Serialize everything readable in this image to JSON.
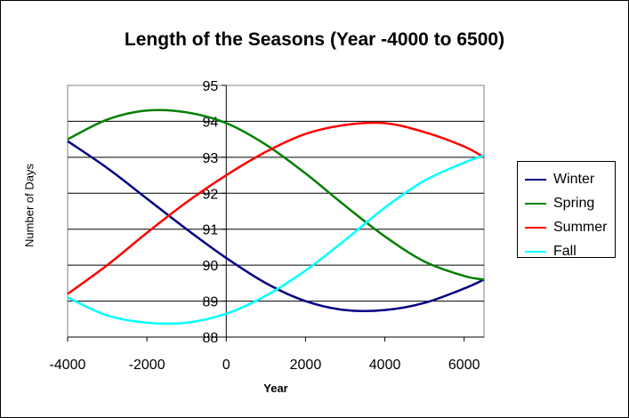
{
  "chart_data": {
    "type": "line",
    "title": "Length of the Seasons (Year -4000 to 6500)",
    "xlabel": "Year",
    "ylabel": "Number of Days",
    "xlim": [
      -4000,
      6500
    ],
    "ylim": [
      88,
      95
    ],
    "x_ticks": [
      -4000,
      -2000,
      0,
      2000,
      4000,
      6000
    ],
    "y_ticks": [
      88,
      89,
      90,
      91,
      92,
      93,
      94,
      95
    ],
    "grid": "horizontal",
    "legend_position": "right",
    "x": [
      -4000,
      -3000,
      -2000,
      -1000,
      0,
      1000,
      2000,
      3000,
      4000,
      5000,
      6000,
      6500
    ],
    "series": [
      {
        "name": "Winter",
        "color": "#000080",
        "values": [
          93.45,
          92.7,
          91.85,
          91.0,
          90.2,
          89.5,
          89.0,
          88.75,
          88.75,
          88.95,
          89.35,
          89.6
        ]
      },
      {
        "name": "Spring",
        "color": "#008000",
        "values": [
          93.5,
          94.05,
          94.3,
          94.25,
          93.95,
          93.35,
          92.55,
          91.65,
          90.8,
          90.1,
          89.7,
          89.6
        ]
      },
      {
        "name": "Summer",
        "color": "#ff0000",
        "values": [
          89.2,
          90.0,
          90.9,
          91.75,
          92.5,
          93.15,
          93.65,
          93.9,
          93.95,
          93.7,
          93.3,
          93.0
        ]
      },
      {
        "name": "Fall",
        "color": "#00ffff",
        "values": [
          89.1,
          88.6,
          88.4,
          88.4,
          88.65,
          89.15,
          89.85,
          90.7,
          91.6,
          92.35,
          92.85,
          93.05
        ]
      }
    ]
  }
}
